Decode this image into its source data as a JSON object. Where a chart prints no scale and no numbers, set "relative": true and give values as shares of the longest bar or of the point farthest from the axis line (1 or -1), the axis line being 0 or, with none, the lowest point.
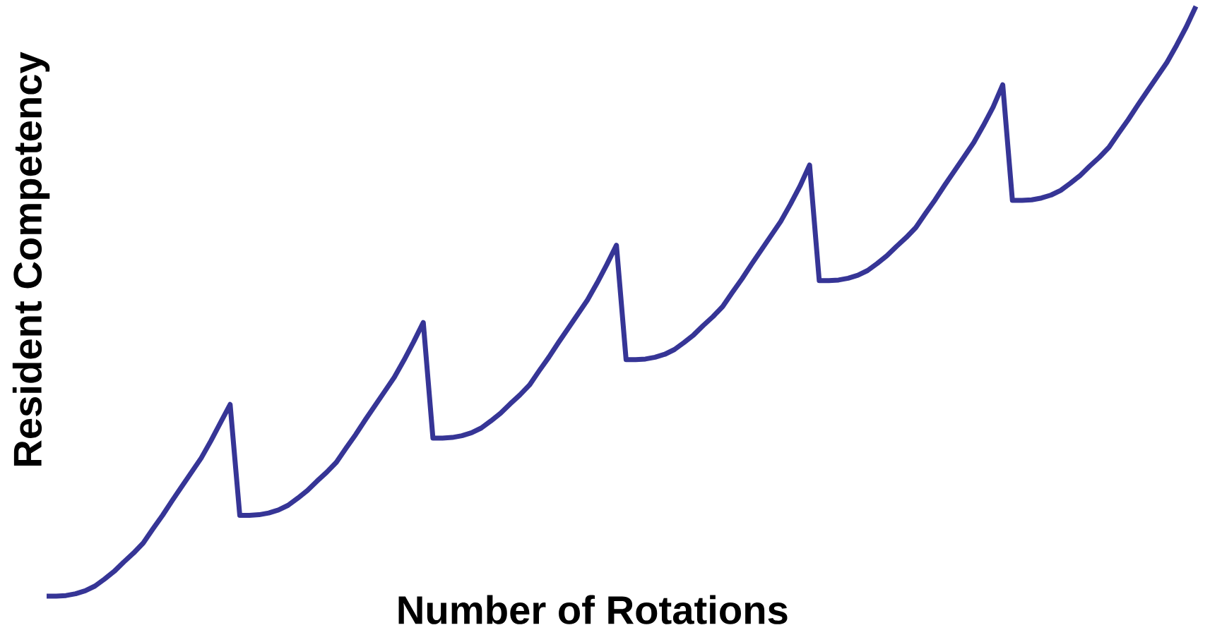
{
  "chart_data": {
    "type": "line",
    "relative": true,
    "xlabel": "Number of Rotations",
    "ylabel": "Resident Competency",
    "marker": "none",
    "line_style": "solid",
    "categories": [
      null,
      null,
      null,
      null,
      null,
      null,
      null,
      null,
      null,
      null,
      null,
      null,
      null,
      null,
      null,
      null,
      null,
      null,
      null,
      null,
      null,
      null,
      null,
      null,
      null,
      null,
      null,
      null,
      null,
      null,
      null,
      null,
      null,
      null,
      null,
      null,
      null,
      null,
      null,
      null,
      null,
      null,
      null,
      null,
      null,
      null,
      null,
      null,
      null,
      null,
      null,
      null,
      null,
      null,
      null,
      null,
      null,
      null,
      null,
      null,
      null,
      null,
      null,
      null,
      null,
      null,
      null,
      null,
      null,
      null,
      null,
      null,
      null,
      null,
      null,
      null,
      null,
      null,
      null,
      null,
      null,
      null,
      null,
      null,
      null,
      null,
      null,
      null,
      null,
      null,
      null,
      null,
      null,
      null,
      null,
      null,
      null,
      null,
      null,
      null,
      null,
      null,
      null,
      null,
      null,
      null,
      null,
      null,
      null,
      null,
      null,
      null,
      null,
      null,
      null,
      null,
      null,
      null,
      null,
      null
    ],
    "series": [
      {
        "color": "#363596",
        "values": [
          0,
          0,
          0.001,
          0.004,
          0.009,
          0.017,
          0.029,
          0.042,
          0.058,
          0.073,
          0.09,
          0.114,
          0.137,
          0.162,
          0.186,
          0.21,
          0.234,
          0.263,
          0.294,
          0.325,
          0.137,
          0.137,
          0.138,
          0.141,
          0.146,
          0.154,
          0.166,
          0.179,
          0.195,
          0.21,
          0.227,
          0.251,
          0.274,
          0.299,
          0.323,
          0.347,
          0.371,
          0.4,
          0.431,
          0.464,
          0.268,
          0.268,
          0.269,
          0.272,
          0.277,
          0.285,
          0.297,
          0.31,
          0.326,
          0.341,
          0.358,
          0.382,
          0.405,
          0.43,
          0.454,
          0.478,
          0.502,
          0.531,
          0.562,
          0.595,
          0.401,
          0.401,
          0.402,
          0.405,
          0.41,
          0.418,
          0.43,
          0.443,
          0.459,
          0.474,
          0.491,
          0.515,
          0.538,
          0.563,
          0.587,
          0.611,
          0.635,
          0.664,
          0.695,
          0.731,
          0.535,
          0.535,
          0.536,
          0.539,
          0.544,
          0.552,
          0.564,
          0.577,
          0.593,
          0.608,
          0.625,
          0.649,
          0.672,
          0.697,
          0.721,
          0.745,
          0.769,
          0.798,
          0.829,
          0.867,
          0.671,
          0.671,
          0.672,
          0.675,
          0.68,
          0.688,
          0.7,
          0.713,
          0.729,
          0.744,
          0.761,
          0.785,
          0.808,
          0.833,
          0.857,
          0.881,
          0.905,
          0.934,
          0.965,
          1.0
        ]
      }
    ]
  }
}
